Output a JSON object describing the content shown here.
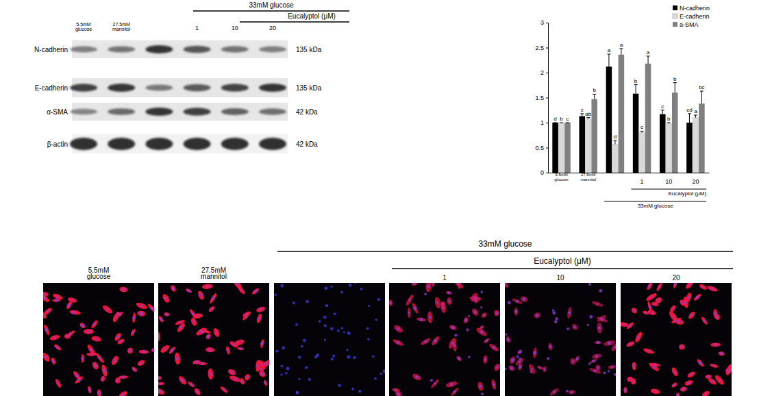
{
  "chart_data": {
    "type": "bar",
    "categories": [
      "5.5mM glucose",
      "27.5mM mannitol",
      null,
      "1",
      "10",
      "20"
    ],
    "series": [
      {
        "name": "N-cadherin",
        "color": "#000000",
        "values": [
          1.0,
          1.13,
          2.12,
          1.58,
          1.17,
          1.0
        ],
        "errors": [
          0,
          0.05,
          0.25,
          0.18,
          0.08,
          0.18
        ],
        "letters": [
          "d",
          "c",
          "a",
          "b",
          "c",
          "cd"
        ]
      },
      {
        "name": "E-cadherin",
        "color": "#d9d9d9",
        "values": [
          1.0,
          1.08,
          0.57,
          0.8,
          0.98,
          1.1
        ],
        "errors": [
          0,
          0.02,
          0.07,
          0.03,
          0.02,
          0.05
        ],
        "letters": [
          "b",
          "ab",
          "d",
          "c",
          "b",
          "a"
        ]
      },
      {
        "name": "a-SMA",
        "color": "#808080",
        "values": [
          1.0,
          1.47,
          2.36,
          2.18,
          1.6,
          1.38
        ],
        "errors": [
          0,
          0.1,
          0.12,
          0.15,
          0.2,
          0.25
        ],
        "letters": [
          "c",
          "b",
          "a",
          "a",
          "b",
          "bc"
        ]
      }
    ],
    "ylim": [
      0,
      3
    ],
    "yticks": [
      0,
      0.5,
      1,
      1.5,
      2,
      2.5,
      3
    ],
    "legend": "top-right",
    "annotations": [
      {
        "text": "Eucalyptol (μM)",
        "span": [
          3,
          5
        ]
      },
      {
        "text": "33mM glucose",
        "span": [
          2,
          5
        ]
      }
    ]
  },
  "western_blot": {
    "header": "33mM glucose",
    "subheader": "Eucalyptol (μM)",
    "lanes": [
      "5.5mM glucose",
      "27.5mM mannitol",
      null,
      "1",
      "10",
      "20"
    ],
    "rows": [
      {
        "label": "N-cadherin",
        "size": "135 kDa"
      },
      {
        "label": "E-cadherin",
        "size": "135 kDa"
      },
      {
        "label": "α-SMA",
        "size": "42 kDa"
      },
      {
        "label": "β-actin",
        "size": "42 kDa"
      }
    ]
  },
  "micrographs": {
    "header": "33mM glucose",
    "subheader": "Eucalyptol (μM)",
    "panels": [
      "5.5mM glucose",
      "27.5mM mannitol",
      null,
      "1",
      "10",
      "20"
    ]
  }
}
